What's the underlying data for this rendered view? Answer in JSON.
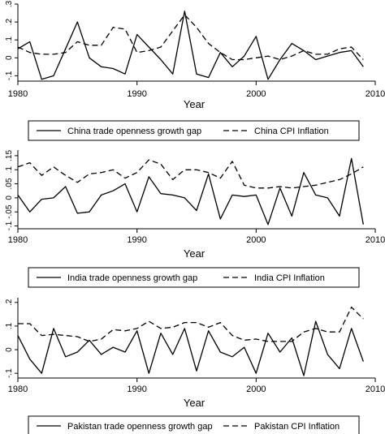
{
  "chart_data": [
    {
      "type": "line",
      "xlabel": "Year",
      "ylabel": "",
      "xlim": [
        1980,
        2010
      ],
      "ylim": [
        -0.13,
        0.3
      ],
      "x_ticks": [
        1980,
        1990,
        2000,
        2010
      ],
      "y_ticks": [
        -0.1,
        0,
        0.1,
        0.2,
        0.3
      ],
      "y_tick_labels": [
        "-.1",
        "0",
        ".1",
        ".2",
        ".3"
      ],
      "x": [
        1980,
        1981,
        1982,
        1983,
        1984,
        1985,
        1986,
        1987,
        1988,
        1989,
        1990,
        1991,
        1992,
        1993,
        1994,
        1995,
        1996,
        1997,
        1998,
        1999,
        2000,
        2001,
        2002,
        2003,
        2004,
        2005,
        2006,
        2007,
        2008,
        2009
      ],
      "series": [
        {
          "name": "China trade openness growth gap",
          "style": "solid",
          "values": [
            0.05,
            0.09,
            -0.12,
            -0.1,
            0.05,
            0.2,
            0.0,
            -0.05,
            -0.06,
            -0.09,
            0.13,
            0.06,
            -0.01,
            -0.09,
            0.26,
            -0.09,
            -0.11,
            0.03,
            -0.05,
            0.01,
            0.12,
            -0.12,
            -0.01,
            0.08,
            0.04,
            -0.01,
            0.01,
            0.03,
            0.04,
            -0.05
          ]
        },
        {
          "name": "China CPI Inflation",
          "style": "dashed",
          "values": [
            0.06,
            0.03,
            0.02,
            0.02,
            0.03,
            0.09,
            0.07,
            0.07,
            0.17,
            0.16,
            0.03,
            0.04,
            0.06,
            0.15,
            0.24,
            0.17,
            0.08,
            0.03,
            -0.01,
            -0.01,
            0.0,
            0.01,
            -0.01,
            0.01,
            0.04,
            0.02,
            0.02,
            0.05,
            0.06,
            -0.01
          ]
        }
      ]
    },
    {
      "type": "line",
      "xlabel": "Year",
      "ylabel": "",
      "xlim": [
        1980,
        2010
      ],
      "ylim": [
        -0.11,
        0.17
      ],
      "x_ticks": [
        1980,
        1990,
        2000,
        2010
      ],
      "y_ticks": [
        -0.1,
        -0.05,
        0,
        0.05,
        0.1,
        0.15
      ],
      "y_tick_labels": [
        "-.1",
        "-.05",
        "0",
        ".05",
        ".1",
        ".15"
      ],
      "x": [
        1980,
        1981,
        1982,
        1983,
        1984,
        1985,
        1986,
        1987,
        1988,
        1989,
        1990,
        1991,
        1992,
        1993,
        1994,
        1995,
        1996,
        1997,
        1998,
        1999,
        2000,
        2001,
        2002,
        2003,
        2004,
        2005,
        2006,
        2007,
        2008,
        2009
      ],
      "series": [
        {
          "name": "India trade openness growth gap",
          "style": "solid",
          "values": [
            0.01,
            -0.05,
            -0.005,
            0.0,
            0.04,
            -0.055,
            -0.05,
            0.01,
            0.025,
            0.05,
            -0.05,
            0.075,
            0.015,
            0.01,
            0.0,
            -0.045,
            0.085,
            -0.075,
            0.01,
            0.005,
            0.01,
            -0.095,
            0.035,
            -0.065,
            0.09,
            0.01,
            0.0,
            -0.065,
            0.14,
            -0.095
          ]
        },
        {
          "name": "India CPI Inflation",
          "style": "dashed",
          "values": [
            0.11,
            0.125,
            0.08,
            0.11,
            0.08,
            0.055,
            0.085,
            0.09,
            0.1,
            0.07,
            0.09,
            0.135,
            0.12,
            0.065,
            0.1,
            0.1,
            0.09,
            0.07,
            0.13,
            0.045,
            0.035,
            0.035,
            0.04,
            0.035,
            0.04,
            0.045,
            0.055,
            0.065,
            0.085,
            0.11
          ]
        }
      ]
    },
    {
      "type": "line",
      "xlabel": "Year",
      "ylabel": "",
      "xlim": [
        1980,
        2010
      ],
      "ylim": [
        -0.12,
        0.22
      ],
      "x_ticks": [
        1980,
        1990,
        2000,
        2010
      ],
      "y_ticks": [
        -0.1,
        0,
        0.1,
        0.2
      ],
      "y_tick_labels": [
        "-.1",
        "0",
        ".1",
        ".2"
      ],
      "x": [
        1980,
        1981,
        1982,
        1983,
        1984,
        1985,
        1986,
        1987,
        1988,
        1989,
        1990,
        1991,
        1992,
        1993,
        1994,
        1995,
        1996,
        1997,
        1998,
        1999,
        2000,
        2001,
        2002,
        2003,
        2004,
        2005,
        2006,
        2007,
        2008,
        2009
      ],
      "series": [
        {
          "name": "Pakistan trade openness growth gap",
          "style": "solid",
          "values": [
            0.06,
            -0.04,
            -0.1,
            0.09,
            -0.03,
            -0.01,
            0.04,
            -0.02,
            0.01,
            -0.01,
            0.08,
            -0.1,
            0.07,
            -0.02,
            0.09,
            -0.09,
            0.08,
            -0.01,
            -0.03,
            0.01,
            -0.1,
            0.07,
            -0.01,
            0.05,
            -0.11,
            0.12,
            -0.02,
            -0.08,
            0.09,
            -0.05
          ]
        },
        {
          "name": "Pakistan CPI Inflation",
          "style": "dashed",
          "values": [
            0.11,
            0.11,
            0.06,
            0.065,
            0.06,
            0.055,
            0.035,
            0.045,
            0.085,
            0.08,
            0.09,
            0.12,
            0.09,
            0.095,
            0.115,
            0.115,
            0.095,
            0.115,
            0.06,
            0.04,
            0.045,
            0.035,
            0.035,
            0.035,
            0.075,
            0.09,
            0.075,
            0.075,
            0.18,
            0.13
          ]
        }
      ]
    }
  ]
}
